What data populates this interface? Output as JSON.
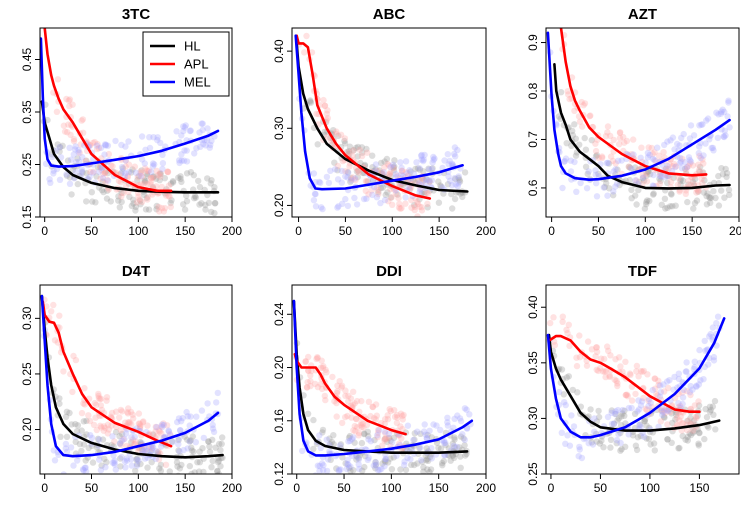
{
  "chart_data": [
    {
      "type": "line",
      "title": "3TC",
      "xlabel": "",
      "ylabel": "",
      "xlim": [
        -5,
        200
      ],
      "ylim": [
        0.15,
        0.51
      ],
      "xticks": [
        0,
        50,
        100,
        150,
        200
      ],
      "yticks": [
        0.15,
        0.25,
        0.35,
        0.45
      ],
      "ytick_labels": [
        "0.15",
        "0.25",
        "0.35",
        "0.45"
      ],
      "legend": {
        "position": "top-right",
        "entries": [
          "HL",
          "APL",
          "MEL"
        ]
      },
      "series": [
        {
          "name": "HL",
          "color": "#000000",
          "x": [
            -3,
            0,
            5,
            10,
            20,
            30,
            50,
            75,
            100,
            125,
            150,
            185
          ],
          "y": [
            0.37,
            0.33,
            0.3,
            0.27,
            0.245,
            0.23,
            0.215,
            0.205,
            0.2,
            0.198,
            0.197,
            0.197
          ]
        },
        {
          "name": "APL",
          "color": "#ff0000",
          "x": [
            0,
            3,
            7,
            10,
            15,
            20,
            30,
            40,
            50,
            75,
            100,
            120,
            135
          ],
          "y": [
            0.51,
            0.46,
            0.42,
            0.4,
            0.375,
            0.355,
            0.33,
            0.3,
            0.27,
            0.23,
            0.207,
            0.2,
            0.2
          ]
        },
        {
          "name": "MEL",
          "color": "#0000ff",
          "x": [
            -4,
            -2,
            0,
            3,
            7,
            15,
            30,
            50,
            75,
            100,
            125,
            150,
            175,
            185
          ],
          "y": [
            0.49,
            0.38,
            0.3,
            0.26,
            0.248,
            0.246,
            0.247,
            0.252,
            0.259,
            0.266,
            0.276,
            0.29,
            0.305,
            0.314
          ]
        }
      ]
    },
    {
      "type": "line",
      "title": "ABC",
      "xlabel": "",
      "ylabel": "",
      "xlim": [
        -7,
        200
      ],
      "ylim": [
        0.185,
        0.43
      ],
      "xticks": [
        0,
        50,
        100,
        150,
        200
      ],
      "yticks": [
        0.2,
        0.3,
        0.4
      ],
      "ytick_labels": [
        "0.20",
        "0.30",
        "0.40"
      ],
      "series": [
        {
          "name": "HL",
          "color": "#000000",
          "x": [
            -2,
            0,
            5,
            10,
            20,
            30,
            50,
            75,
            100,
            125,
            150,
            180
          ],
          "y": [
            0.41,
            0.38,
            0.345,
            0.325,
            0.3,
            0.28,
            0.26,
            0.245,
            0.233,
            0.226,
            0.22,
            0.218
          ]
        },
        {
          "name": "APL",
          "color": "#ff0000",
          "x": [
            -2,
            0,
            5,
            10,
            15,
            20,
            30,
            40,
            50,
            75,
            100,
            125,
            140
          ],
          "y": [
            0.42,
            0.41,
            0.41,
            0.405,
            0.37,
            0.33,
            0.3,
            0.28,
            0.265,
            0.24,
            0.225,
            0.213,
            0.209
          ]
        },
        {
          "name": "MEL",
          "color": "#0000ff",
          "x": [
            -3,
            0,
            3,
            7,
            12,
            18,
            25,
            50,
            75,
            100,
            125,
            150,
            175
          ],
          "y": [
            0.42,
            0.37,
            0.32,
            0.27,
            0.235,
            0.222,
            0.221,
            0.222,
            0.227,
            0.232,
            0.237,
            0.243,
            0.252
          ]
        }
      ]
    },
    {
      "type": "line",
      "title": "AZT",
      "xlabel": "",
      "ylabel": "",
      "xlim": [
        -6,
        200
      ],
      "ylim": [
        0.54,
        0.93
      ],
      "xticks": [
        0,
        50,
        100,
        150,
        200
      ],
      "yticks": [
        0.6,
        0.7,
        0.8,
        0.9
      ],
      "ytick_labels": [
        "0.6",
        "0.7",
        "0.8",
        "0.9"
      ],
      "series": [
        {
          "name": "HL",
          "color": "#000000",
          "x": [
            3,
            5,
            10,
            15,
            20,
            30,
            40,
            50,
            60,
            75,
            100,
            125,
            150,
            175,
            190
          ],
          "y": [
            0.855,
            0.8,
            0.755,
            0.73,
            0.7,
            0.675,
            0.66,
            0.645,
            0.625,
            0.612,
            0.6,
            0.599,
            0.6,
            0.605,
            0.606
          ]
        },
        {
          "name": "APL",
          "color": "#ff0000",
          "x": [
            10,
            15,
            20,
            25,
            30,
            40,
            50,
            75,
            100,
            125,
            150,
            165
          ],
          "y": [
            0.93,
            0.86,
            0.81,
            0.78,
            0.76,
            0.725,
            0.705,
            0.67,
            0.645,
            0.63,
            0.626,
            0.628
          ]
        },
        {
          "name": "MEL",
          "color": "#0000ff",
          "x": [
            -4,
            0,
            3,
            7,
            10,
            15,
            25,
            40,
            50,
            75,
            100,
            125,
            150,
            175,
            190
          ],
          "y": [
            0.92,
            0.79,
            0.72,
            0.67,
            0.645,
            0.63,
            0.62,
            0.617,
            0.618,
            0.625,
            0.638,
            0.66,
            0.69,
            0.72,
            0.74
          ]
        }
      ]
    },
    {
      "type": "line",
      "title": "D4T",
      "xlabel": "",
      "ylabel": "",
      "xlim": [
        -5,
        200
      ],
      "ylim": [
        0.16,
        0.33
      ],
      "xticks": [
        0,
        50,
        100,
        150,
        200
      ],
      "yticks": [
        0.2,
        0.25,
        0.3
      ],
      "ytick_labels": [
        "0.20",
        "0.25",
        "0.30"
      ],
      "series": [
        {
          "name": "HL",
          "color": "#000000",
          "x": [
            -3,
            0,
            3,
            7,
            12,
            20,
            30,
            50,
            75,
            100,
            125,
            150,
            175,
            190
          ],
          "y": [
            0.32,
            0.29,
            0.265,
            0.24,
            0.22,
            0.205,
            0.196,
            0.188,
            0.182,
            0.178,
            0.176,
            0.175,
            0.176,
            0.177
          ]
        },
        {
          "name": "APL",
          "color": "#ff0000",
          "x": [
            -2,
            0,
            5,
            10,
            15,
            20,
            30,
            40,
            50,
            75,
            100,
            120,
            135
          ],
          "y": [
            0.315,
            0.303,
            0.297,
            0.296,
            0.287,
            0.27,
            0.25,
            0.232,
            0.22,
            0.206,
            0.198,
            0.19,
            0.185
          ]
        },
        {
          "name": "MEL",
          "color": "#0000ff",
          "x": [
            -3,
            0,
            3,
            7,
            12,
            20,
            30,
            50,
            75,
            100,
            125,
            150,
            175,
            185
          ],
          "y": [
            0.32,
            0.28,
            0.24,
            0.205,
            0.185,
            0.177,
            0.176,
            0.177,
            0.18,
            0.185,
            0.19,
            0.197,
            0.208,
            0.215
          ]
        }
      ]
    },
    {
      "type": "line",
      "title": "DDI",
      "xlabel": "",
      "ylabel": "",
      "xlim": [
        -5,
        200
      ],
      "ylim": [
        0.12,
        0.262
      ],
      "xticks": [
        0,
        50,
        100,
        150,
        200
      ],
      "yticks": [
        0.12,
        0.16,
        0.2,
        0.24
      ],
      "ytick_labels": [
        "0.12",
        "0.16",
        "0.20",
        "0.24"
      ],
      "series": [
        {
          "name": "HL",
          "color": "#000000",
          "x": [
            -3,
            0,
            3,
            7,
            12,
            20,
            30,
            50,
            75,
            100,
            125,
            150,
            180
          ],
          "y": [
            0.25,
            0.21,
            0.185,
            0.165,
            0.153,
            0.145,
            0.141,
            0.138,
            0.137,
            0.136,
            0.136,
            0.136,
            0.137
          ]
        },
        {
          "name": "APL",
          "color": "#ff0000",
          "x": [
            -2,
            0,
            5,
            10,
            20,
            25,
            30,
            40,
            50,
            75,
            100,
            115
          ],
          "y": [
            0.21,
            0.205,
            0.2,
            0.2,
            0.2,
            0.195,
            0.188,
            0.178,
            0.172,
            0.16,
            0.153,
            0.15
          ]
        },
        {
          "name": "MEL",
          "color": "#0000ff",
          "x": [
            -3,
            0,
            3,
            7,
            12,
            20,
            30,
            50,
            75,
            100,
            125,
            150,
            175,
            185
          ],
          "y": [
            0.25,
            0.2,
            0.165,
            0.145,
            0.137,
            0.134,
            0.134,
            0.135,
            0.137,
            0.139,
            0.142,
            0.146,
            0.155,
            0.16
          ]
        }
      ]
    },
    {
      "type": "line",
      "title": "TDF",
      "xlabel": "",
      "ylabel": "",
      "xlim": [
        -5,
        190
      ],
      "ylim": [
        0.25,
        0.42
      ],
      "xticks": [
        0,
        50,
        100,
        150
      ],
      "yticks": [
        0.25,
        0.3,
        0.35,
        0.4
      ],
      "ytick_labels": [
        "0.25",
        "0.30",
        "0.35",
        "0.40"
      ],
      "series": [
        {
          "name": "HL",
          "color": "#000000",
          "x": [
            -2,
            0,
            5,
            10,
            20,
            30,
            40,
            50,
            75,
            100,
            125,
            150,
            170
          ],
          "y": [
            0.375,
            0.36,
            0.345,
            0.335,
            0.32,
            0.305,
            0.297,
            0.292,
            0.289,
            0.289,
            0.291,
            0.294,
            0.298
          ]
        },
        {
          "name": "APL",
          "color": "#ff0000",
          "x": [
            -2,
            5,
            10,
            20,
            30,
            40,
            50,
            60,
            75,
            100,
            125,
            140,
            150
          ],
          "y": [
            0.37,
            0.374,
            0.374,
            0.37,
            0.36,
            0.353,
            0.35,
            0.345,
            0.337,
            0.32,
            0.308,
            0.306,
            0.306
          ]
        },
        {
          "name": "MEL",
          "color": "#0000ff",
          "x": [
            -3,
            0,
            5,
            10,
            20,
            30,
            40,
            50,
            75,
            100,
            125,
            150,
            165,
            175
          ],
          "y": [
            0.375,
            0.345,
            0.318,
            0.3,
            0.288,
            0.283,
            0.283,
            0.285,
            0.292,
            0.305,
            0.322,
            0.345,
            0.368,
            0.39
          ]
        }
      ]
    }
  ]
}
